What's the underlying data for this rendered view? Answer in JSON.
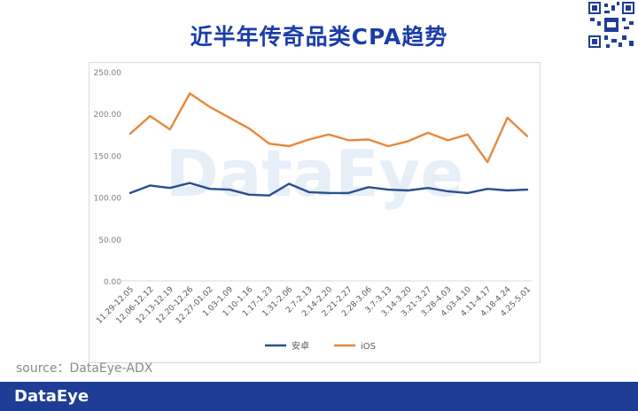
{
  "page": {
    "title": "近半年传奇品类CPA趋势",
    "source": "source：DataEye-ADX",
    "footer_logo": "DataEye",
    "watermark": "DataEye"
  },
  "colors": {
    "title": "#1a3ea8",
    "series_android": "#2a4f8f",
    "series_ios": "#e8873a",
    "footer": "#1e3e96"
  },
  "chart_data": {
    "type": "line",
    "title": "",
    "xlabel": "",
    "ylabel": "",
    "ylim": [
      0,
      250
    ],
    "yticks": [
      "0.00",
      "50.00",
      "100.00",
      "150.00",
      "200.00",
      "250.00"
    ],
    "grid": false,
    "legend": "bottom",
    "categories": [
      "11.29-12.05",
      "12.06-12.12",
      "12.13-12.19",
      "12.20-12.26",
      "12.27-01.02",
      "1.03-1.09",
      "1.10-1.16",
      "1.17-1.23",
      "1.31-2.06",
      "2.7-2.13",
      "2.14-2.20",
      "2.21-2.27",
      "2.28-3.06",
      "3.7-3.13",
      "3.14-3.20",
      "3.21-3.27",
      "3.28-4.03",
      "4.03-4.10",
      "4.11-4.17",
      "4.18-4.24",
      "4.25-5.01"
    ],
    "series": [
      {
        "name": "安卓",
        "color": "#2a4f8f",
        "values": [
          105,
          114,
          111,
          117,
          110,
          109,
          103,
          102,
          116,
          106,
          105,
          105,
          112,
          109,
          108,
          111,
          107,
          105,
          110,
          108,
          109
        ]
      },
      {
        "name": "iOS",
        "color": "#e8873a",
        "values": [
          176,
          197,
          181,
          224,
          208,
          195,
          182,
          164,
          161,
          169,
          175,
          168,
          169,
          161,
          167,
          177,
          168,
          175,
          142,
          195,
          173
        ]
      }
    ]
  }
}
